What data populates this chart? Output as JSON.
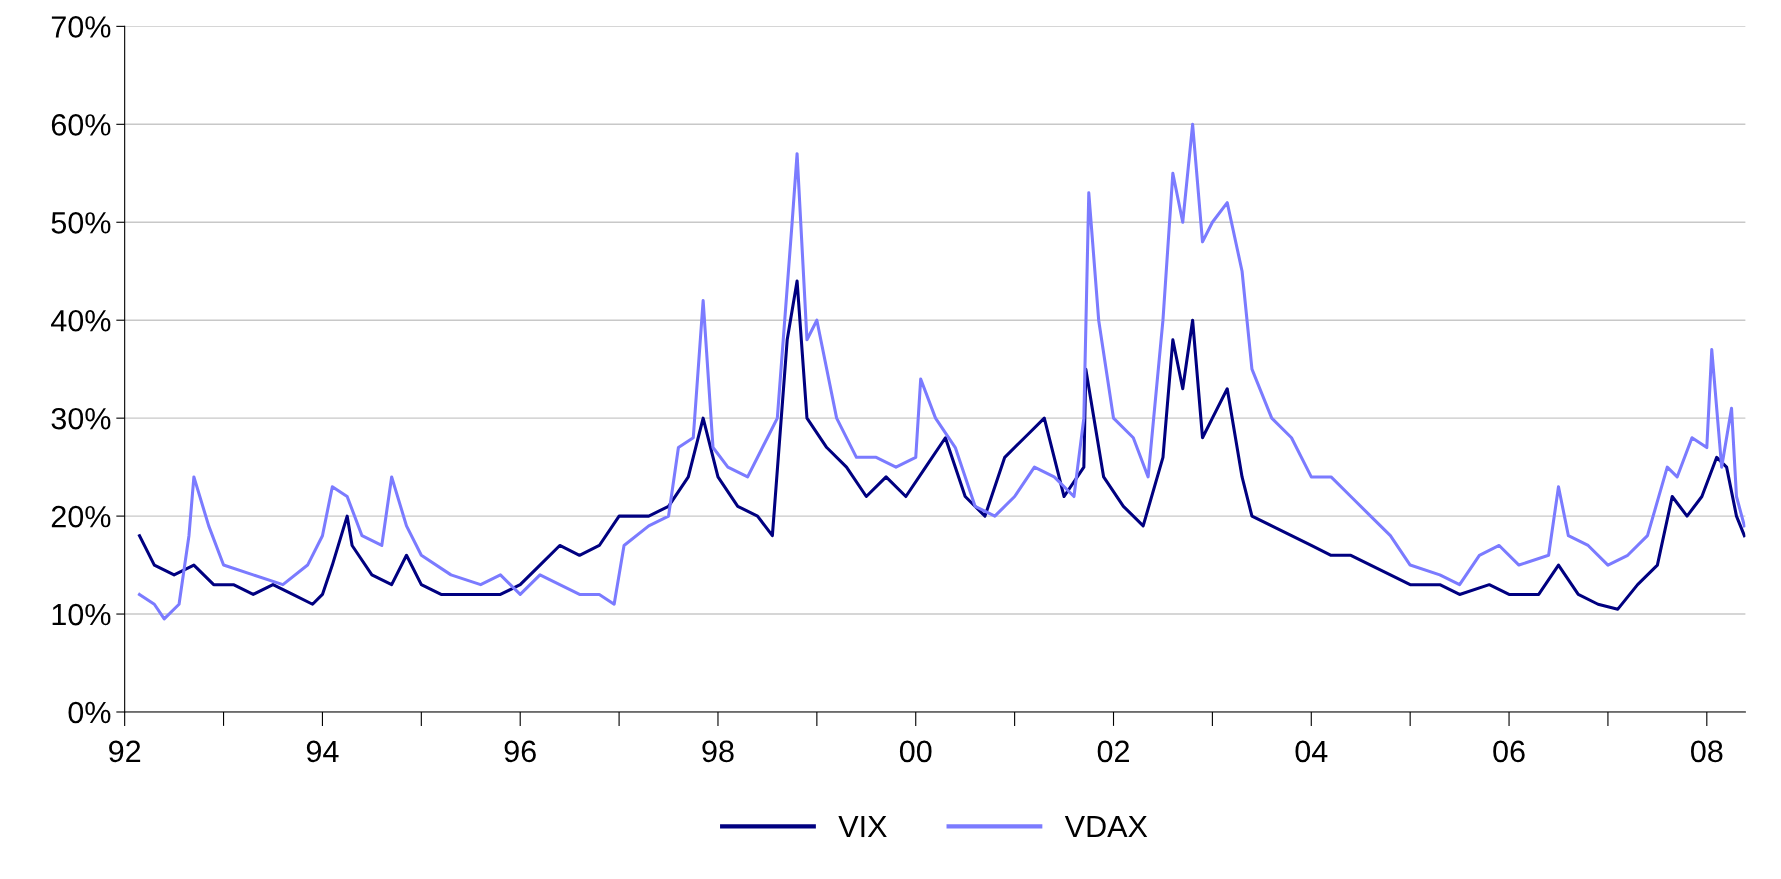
{
  "chart_data": {
    "type": "line",
    "xlim": [
      1992,
      2008.39
    ],
    "ylim": [
      0,
      70
    ],
    "xticks": [
      {
        "value": 1992,
        "label": "92"
      },
      {
        "value": 1993,
        "label": null
      },
      {
        "value": 1994,
        "label": "94"
      },
      {
        "value": 1995,
        "label": null
      },
      {
        "value": 1996,
        "label": "96"
      },
      {
        "value": 1997,
        "label": null
      },
      {
        "value": 1998,
        "label": "98"
      },
      {
        "value": 1999,
        "label": null
      },
      {
        "value": 2000,
        "label": "00"
      },
      {
        "value": 2001,
        "label": null
      },
      {
        "value": 2002,
        "label": "02"
      },
      {
        "value": 2003,
        "label": null
      },
      {
        "value": 2004,
        "label": "04"
      },
      {
        "value": 2005,
        "label": null
      },
      {
        "value": 2006,
        "label": "06"
      },
      {
        "value": 2007,
        "label": null
      },
      {
        "value": 2008,
        "label": "08"
      }
    ],
    "yticks": [
      {
        "value": 0,
        "label": "0%"
      },
      {
        "value": 10,
        "label": "10%"
      },
      {
        "value": 20,
        "label": "20%"
      },
      {
        "value": 30,
        "label": "30%"
      },
      {
        "value": 40,
        "label": "40%"
      },
      {
        "value": 50,
        "label": "50%"
      },
      {
        "value": 60,
        "label": "60%"
      },
      {
        "value": 70,
        "label": "70%"
      }
    ],
    "grid": "y",
    "legend": "bottom",
    "line_style": "solid",
    "series": [
      {
        "name": "VIX",
        "color": "#000080",
        "x": [
          1992.15,
          1992.3,
          1992.5,
          1992.7,
          1992.9,
          1993.1,
          1993.3,
          1993.5,
          1993.7,
          1993.9,
          1994.0,
          1994.1,
          1994.25,
          1994.3,
          1994.5,
          1994.7,
          1994.85,
          1995.0,
          1995.2,
          1995.5,
          1995.8,
          1996.0,
          1996.2,
          1996.4,
          1996.6,
          1996.8,
          1997.0,
          1997.3,
          1997.5,
          1997.7,
          1997.85,
          1998.0,
          1998.2,
          1998.4,
          1998.55,
          1998.7,
          1998.8,
          1998.9,
          1999.1,
          1999.3,
          1999.5,
          1999.7,
          1999.9,
          2000.1,
          2000.3,
          2000.5,
          2000.7,
          2000.9,
          2001.1,
          2001.3,
          2001.5,
          2001.7,
          2001.72,
          2001.9,
          2002.1,
          2002.3,
          2002.5,
          2002.6,
          2002.7,
          2002.8,
          2002.9,
          2003.0,
          2003.15,
          2003.3,
          2003.4,
          2003.6,
          2003.8,
          2004.0,
          2004.2,
          2004.4,
          2004.6,
          2004.8,
          2005.0,
          2005.3,
          2005.5,
          2005.8,
          2006.0,
          2006.3,
          2006.5,
          2006.7,
          2006.9,
          2007.1,
          2007.3,
          2007.5,
          2007.65,
          2007.8,
          2007.95,
          2008.1,
          2008.2,
          2008.3,
          2008.38
        ],
        "values": [
          18,
          15,
          14,
          15,
          13,
          13,
          12,
          13,
          12,
          11,
          12,
          15,
          20,
          17,
          14,
          13,
          16,
          13,
          12,
          12,
          12,
          13,
          15,
          17,
          16,
          17,
          20,
          20,
          21,
          24,
          30,
          24,
          21,
          20,
          18,
          38,
          44,
          30,
          27,
          25,
          22,
          24,
          22,
          25,
          28,
          22,
          20,
          26,
          28,
          30,
          22,
          25,
          35,
          24,
          21,
          19,
          26,
          38,
          33,
          40,
          28,
          30,
          33,
          24,
          20,
          19,
          18,
          17,
          16,
          16,
          15,
          14,
          13,
          13,
          12,
          13,
          12,
          12,
          15,
          12,
          11,
          10.5,
          13,
          15,
          22,
          20,
          22,
          26,
          25,
          20,
          18
        ]
      },
      {
        "name": "VDAX",
        "color": "#7b7bff",
        "x": [
          1992.15,
          1992.3,
          1992.4,
          1992.55,
          1992.65,
          1992.7,
          1992.85,
          1993.0,
          1993.3,
          1993.6,
          1993.85,
          1994.0,
          1994.1,
          1994.25,
          1994.4,
          1994.6,
          1994.7,
          1994.85,
          1995.0,
          1995.3,
          1995.6,
          1995.8,
          1996.0,
          1996.2,
          1996.4,
          1996.6,
          1996.8,
          1996.95,
          1997.05,
          1997.3,
          1997.5,
          1997.6,
          1997.75,
          1997.85,
          1997.95,
          1998.1,
          1998.3,
          1998.5,
          1998.6,
          1998.75,
          1998.8,
          1998.9,
          1999.0,
          1999.2,
          1999.4,
          1999.6,
          1999.8,
          2000.0,
          2000.05,
          2000.2,
          2000.4,
          2000.6,
          2000.8,
          2001.0,
          2001.2,
          2001.4,
          2001.6,
          2001.7,
          2001.75,
          2001.85,
          2002.0,
          2002.2,
          2002.35,
          2002.5,
          2002.6,
          2002.7,
          2002.8,
          2002.9,
          2003.0,
          2003.15,
          2003.3,
          2003.4,
          2003.6,
          2003.8,
          2004.0,
          2004.2,
          2004.4,
          2004.6,
          2004.8,
          2005.0,
          2005.3,
          2005.5,
          2005.7,
          2005.9,
          2006.1,
          2006.4,
          2006.5,
          2006.6,
          2006.8,
          2007.0,
          2007.2,
          2007.4,
          2007.6,
          2007.7,
          2007.85,
          2008.0,
          2008.05,
          2008.15,
          2008.25,
          2008.3,
          2008.38
        ],
        "values": [
          12,
          11,
          9.5,
          11,
          18,
          24,
          19,
          15,
          14,
          13,
          15,
          18,
          23,
          22,
          18,
          17,
          24,
          19,
          16,
          14,
          13,
          14,
          12,
          14,
          13,
          12,
          12,
          11,
          17,
          19,
          20,
          27,
          28,
          42,
          27,
          25,
          24,
          28,
          30,
          50,
          57,
          38,
          40,
          30,
          26,
          26,
          25,
          26,
          34,
          30,
          27,
          21,
          20,
          22,
          25,
          24,
          22,
          30,
          53,
          40,
          30,
          28,
          24,
          40,
          55,
          50,
          60,
          48,
          50,
          52,
          45,
          35,
          30,
          28,
          24,
          24,
          22,
          20,
          18,
          15,
          14,
          13,
          16,
          17,
          15,
          16,
          23,
          18,
          17,
          15,
          16,
          18,
          25,
          24,
          28,
          27,
          37,
          25,
          31,
          22,
          19
        ]
      }
    ]
  }
}
